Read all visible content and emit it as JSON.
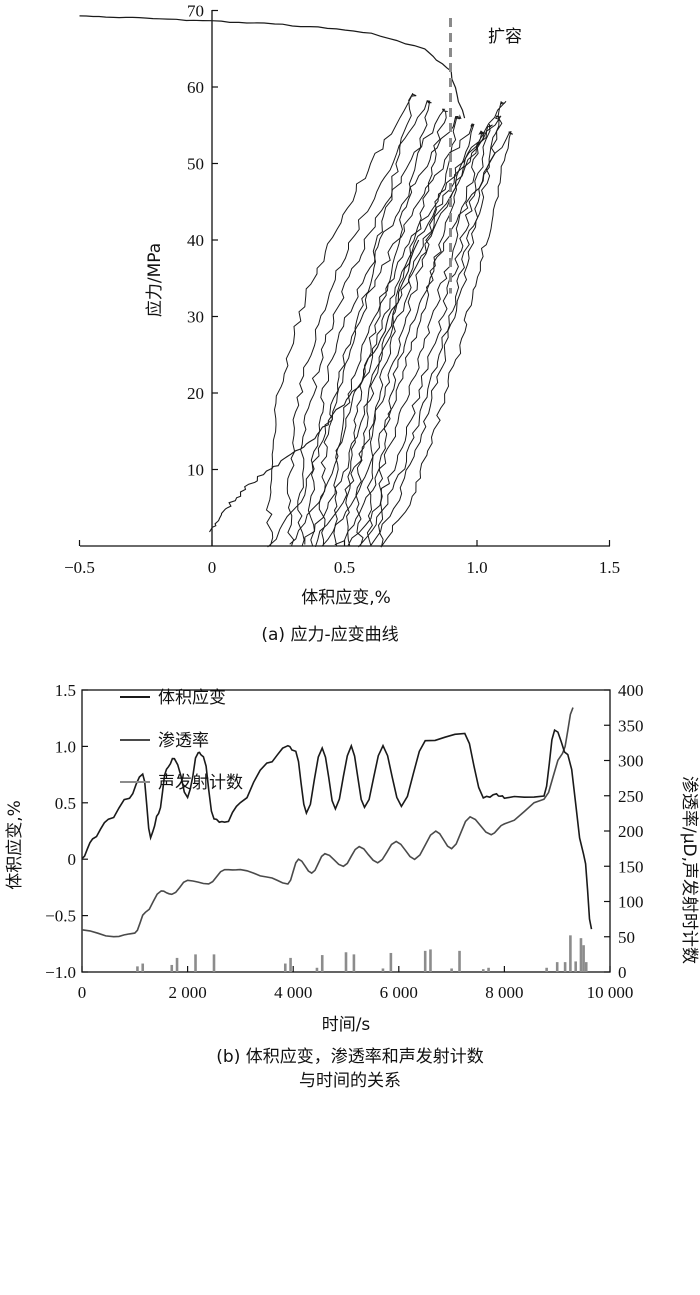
{
  "chart_data": [
    {
      "type": "line",
      "caption": "(a) 应力-应变曲线",
      "xlabel": "体积应变,%",
      "ylabel": "应力/MPa",
      "xlim": [
        -0.5,
        1.5
      ],
      "ylim": [
        0,
        70
      ],
      "xticks": [
        "−0.5",
        "0",
        "0.5",
        "1.0",
        "1.5"
      ],
      "yticks": [
        "10",
        "20",
        "30",
        "40",
        "50",
        "60",
        "70"
      ],
      "annotation": "扩容",
      "dilatancy_x": 0.9,
      "colors": {
        "curve": "#1a1a1a",
        "dilatancy": "#8a8a8a"
      },
      "series": [
        {
          "role": "initial-loading",
          "x": [
            0.0,
            0.03,
            0.08,
            0.14,
            0.22,
            0.3,
            0.38,
            0.46,
            0.55,
            0.62,
            0.7,
            0.78
          ],
          "y": [
            2,
            4,
            6,
            8,
            10,
            12,
            14,
            17,
            21,
            26,
            32,
            40
          ]
        },
        {
          "role": "unloading-reloading-loops",
          "loops": [
            {
              "left": 0.22,
              "right": 0.76,
              "top": 59
            },
            {
              "left": 0.3,
              "right": 0.82,
              "top": 58
            },
            {
              "left": 0.34,
              "right": 0.88,
              "top": 57
            },
            {
              "left": 0.38,
              "right": 0.93,
              "top": 56
            },
            {
              "left": 0.42,
              "right": 0.98,
              "top": 55
            },
            {
              "left": 0.47,
              "right": 1.02,
              "top": 54
            },
            {
              "left": 0.52,
              "right": 1.05,
              "top": 55
            },
            {
              "left": 0.56,
              "right": 1.08,
              "top": 56
            },
            {
              "left": 0.6,
              "right": 1.1,
              "top": 58
            },
            {
              "left": 0.64,
              "right": 1.13,
              "top": 54
            }
          ]
        },
        {
          "role": "tail",
          "x": [
            0.95,
            0.9,
            0.8,
            0.6,
            0.4,
            0.2,
            0.0,
            -0.2,
            -0.35,
            -0.5
          ],
          "y": [
            56,
            62,
            65,
            67,
            67.8,
            68.3,
            68.6,
            68.9,
            69.1,
            69.3
          ]
        }
      ]
    },
    {
      "type": "line",
      "caption_lines": [
        "(b) 体积应变，渗透率和声发射计数",
        "与时间的关系"
      ],
      "xlabel": "时间/s",
      "ylabel_left": "体积应变,%",
      "ylabel_right": "渗透率/μD,声发射时计数",
      "xlim": [
        0,
        10000
      ],
      "ylim_left": [
        -1.0,
        1.5
      ],
      "ylim_right": [
        0,
        400
      ],
      "xticks": [
        "0",
        "2 000",
        "4 000",
        "6 000",
        "8 000",
        "10 000"
      ],
      "yticks_left": [
        "−1.0",
        "−0.5",
        "0",
        "0.5",
        "1.0",
        "1.5"
      ],
      "yticks_right": [
        "0",
        "50",
        "100",
        "150",
        "200",
        "250",
        "300",
        "350",
        "400"
      ],
      "legend": [
        "体积应变",
        "渗透率",
        "声发射计数"
      ],
      "legend_position": "top-left",
      "colors": {
        "strain": "#1a1a1a",
        "permeability": "#4a4a4a",
        "ae": "#8c8c8c"
      },
      "series": [
        {
          "name": "体积应变",
          "x": [
            0,
            200,
            500,
            900,
            1150,
            1300,
            1450,
            1600,
            1750,
            2000,
            2200,
            2300,
            2500,
            2700,
            3000,
            3500,
            3900,
            4050,
            4250,
            4550,
            4800,
            5100,
            5350,
            5700,
            6050,
            6500,
            7250,
            7600,
            7850,
            8000,
            8750,
            8950,
            9200,
            9500,
            9650
          ],
          "y": [
            0.0,
            0.18,
            0.35,
            0.55,
            0.76,
            0.2,
            0.4,
            0.8,
            0.9,
            0.55,
            0.95,
            0.9,
            0.35,
            0.32,
            0.5,
            0.85,
            1.0,
            0.95,
            0.4,
            0.99,
            0.45,
            1.0,
            0.45,
            1.0,
            0.46,
            1.05,
            1.12,
            0.55,
            0.57,
            0.55,
            0.55,
            1.15,
            0.92,
            0.05,
            -0.62
          ]
        },
        {
          "name": "渗透率",
          "x": [
            0,
            600,
            1000,
            1200,
            1500,
            1700,
            2000,
            2400,
            2700,
            3000,
            3500,
            3900,
            4100,
            4350,
            4600,
            4950,
            5250,
            5600,
            5950,
            6300,
            6700,
            7000,
            7350,
            7750,
            8000,
            8750,
            9100,
            9300
          ],
          "y": [
            60,
            50,
            55,
            85,
            115,
            110,
            130,
            125,
            145,
            145,
            135,
            125,
            160,
            140,
            168,
            150,
            178,
            155,
            185,
            160,
            200,
            175,
            220,
            195,
            210,
            245,
            310,
            375
          ]
        },
        {
          "name": "声发射计数",
          "x": [
            1050,
            1150,
            1700,
            1800,
            2150,
            2500,
            3850,
            3950,
            4450,
            4550,
            5000,
            5150,
            5700,
            5850,
            6500,
            6600,
            7000,
            7150,
            7600,
            7700,
            8800,
            9000,
            9150,
            9250,
            9350,
            9450,
            9500,
            9550
          ],
          "y": [
            8,
            12,
            10,
            20,
            25,
            25,
            12,
            20,
            6,
            24,
            28,
            25,
            5,
            27,
            30,
            32,
            5,
            30,
            4,
            6,
            6,
            14,
            14,
            52,
            15,
            48,
            38,
            14
          ]
        }
      ]
    }
  ]
}
